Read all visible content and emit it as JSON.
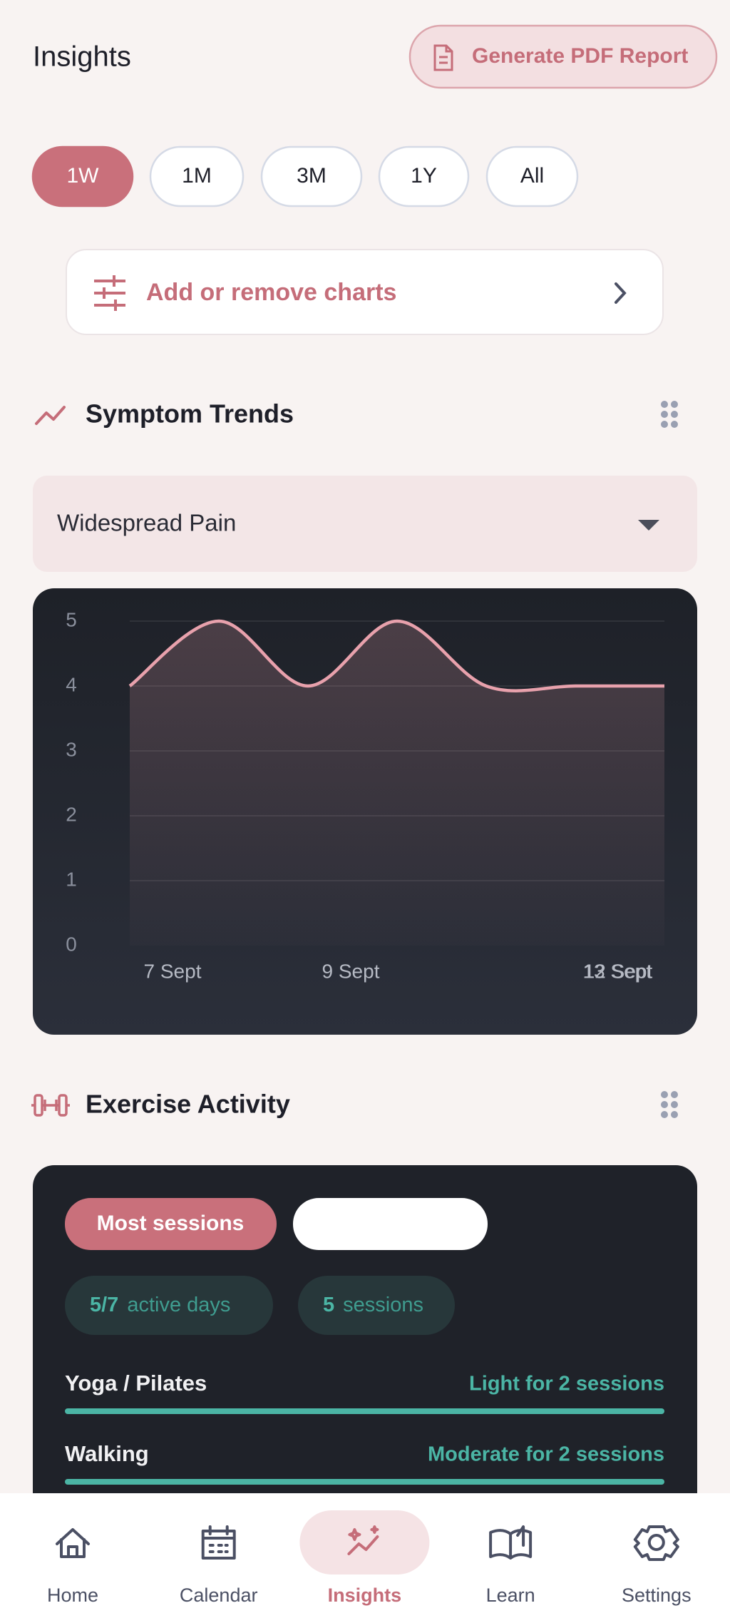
{
  "header": {
    "title": "Insights",
    "report_button": "Generate PDF Report"
  },
  "ranges": [
    "1W",
    "1M",
    "3M",
    "1Y",
    "All"
  ],
  "active_range": "1W",
  "add_charts": "Add or remove charts",
  "symptom_section": {
    "title": "Symptom Trends",
    "selector": "Widespread Pain"
  },
  "chart_data": {
    "type": "line",
    "categories": [
      "7 Sept",
      null,
      "9 Sept",
      null,
      null,
      "12 Sept",
      "13 Sept"
    ],
    "series": [
      {
        "color": "#e8a1ac",
        "values": [
          4,
          5,
          4,
          5,
          4,
          4,
          4
        ]
      }
    ],
    "ylim": [
      0,
      5
    ],
    "yticks": [
      0,
      1,
      2,
      3,
      4,
      5
    ],
    "grid": true
  },
  "exercise_section": {
    "title": "Exercise Activity",
    "tabs": [
      "Most sessions"
    ],
    "stats": [
      {
        "value": "5/7",
        "label": "active days"
      },
      {
        "value": "5",
        "label": "sessions"
      }
    ],
    "activities": [
      {
        "name": "Yoga / Pilates",
        "detail": "Light for 2 sessions"
      },
      {
        "name": "Walking",
        "detail": "Moderate for 2 sessions"
      }
    ]
  },
  "nav": {
    "items": [
      "Home",
      "Calendar",
      "Insights",
      "Learn",
      "Settings"
    ],
    "active": "Insights"
  }
}
